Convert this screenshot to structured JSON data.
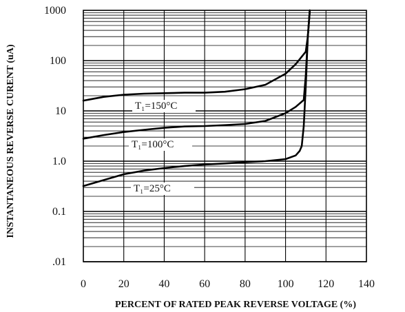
{
  "chart_data": {
    "type": "line",
    "xlabel": "PERCENT OF RATED PEAK REVERSE VOLTAGE (%)",
    "ylabel": "INSTANTANEOUS REVERSE CURENT (uA)",
    "xlim": [
      0,
      140
    ],
    "ylim": [
      0.01,
      1000
    ],
    "yscale": "log",
    "x_tick_labels": [
      "0",
      "20",
      "40",
      "60",
      "80",
      "100",
      "120",
      "140"
    ],
    "y_tick_labels": [
      "1000",
      "100",
      "10",
      "1.0",
      "0.1",
      ".01"
    ],
    "grid": true,
    "series": [
      {
        "name": "T₁=150°C",
        "x": [
          0,
          10,
          20,
          30,
          40,
          50,
          60,
          70,
          80,
          90,
          100,
          105,
          110,
          111,
          112
        ],
        "y": [
          16,
          19,
          21,
          22,
          22.5,
          23,
          23,
          24,
          27,
          33,
          55,
          85,
          150,
          300,
          1000
        ]
      },
      {
        "name": "T₁=100°C",
        "x": [
          0,
          10,
          20,
          30,
          40,
          50,
          60,
          70,
          80,
          90,
          100,
          105,
          109,
          110,
          111,
          112
        ],
        "y": [
          2.8,
          3.3,
          3.8,
          4.2,
          4.6,
          4.9,
          5.0,
          5.2,
          5.5,
          6.3,
          9,
          12,
          16.5,
          50,
          300,
          1000
        ]
      },
      {
        "name": "T₁=25°C",
        "x": [
          0,
          10,
          20,
          30,
          40,
          50,
          60,
          70,
          80,
          90,
          100,
          105,
          107,
          108,
          109,
          110,
          111,
          112
        ],
        "y": [
          0.32,
          0.42,
          0.55,
          0.65,
          0.73,
          0.8,
          0.86,
          0.9,
          0.95,
          1.0,
          1.1,
          1.3,
          1.6,
          2.0,
          5,
          30,
          300,
          1000
        ]
      }
    ],
    "curve_labels": [
      "T₁=150°C",
      "T₁=100°C",
      "T₁=25°C"
    ]
  }
}
